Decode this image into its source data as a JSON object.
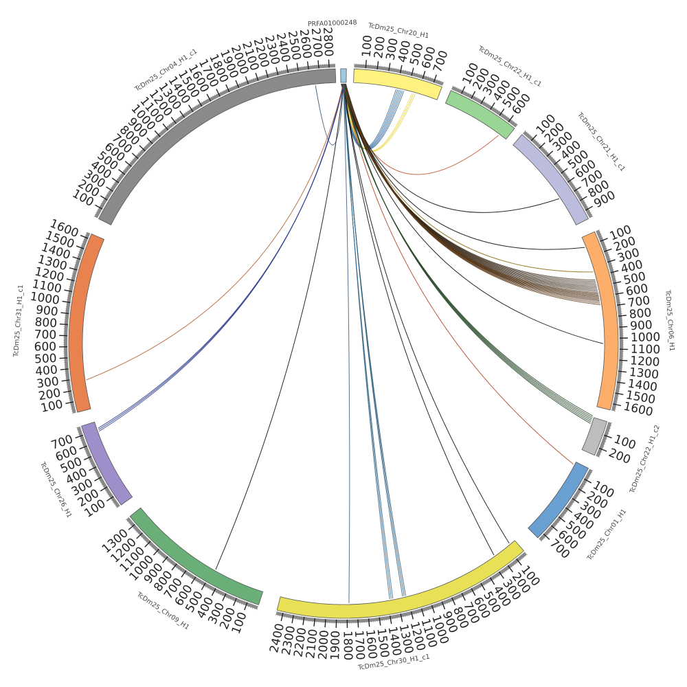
{
  "chart_data": {
    "type": "chord",
    "title": "",
    "axis_unit_note": "",
    "segments": [
      {
        "name": "PRFA01000248",
        "length": 0,
        "color": "#9ecae1",
        "ticks": [],
        "ticks_show": false
      },
      {
        "name": "TcDm25_Chr20_H1",
        "length": 780,
        "color": "#fff27f",
        "ticks": [
          100,
          200,
          300,
          400,
          500,
          600,
          700
        ],
        "ticks_show": true
      },
      {
        "name": "TcDm25_Chr22_H1_c1",
        "length": 680,
        "color": "#99d594",
        "ticks": [
          100,
          200,
          300,
          400,
          500,
          600
        ],
        "ticks_show": true
      },
      {
        "name": "TcDm25_Chr21_H1_c1",
        "length": 980,
        "color": "#bcbddc",
        "ticks": [
          100,
          200,
          300,
          400,
          500,
          600,
          700,
          800,
          900
        ],
        "ticks_show": true
      },
      {
        "name": "TcDm25_Chr06_H1",
        "length": 1660,
        "color": "#fdae6b",
        "ticks": [
          100,
          200,
          300,
          400,
          500,
          600,
          700,
          800,
          900,
          1000,
          1100,
          1200,
          1300,
          1400,
          1500,
          1600
        ],
        "ticks_show": true
      },
      {
        "name": "TcDm25_Chr22_H1_c2",
        "length": 260,
        "color": "#bdbdbd",
        "ticks": [
          100,
          200
        ],
        "ticks_show": true
      },
      {
        "name": "TcDm25_Chr01_H1",
        "length": 760,
        "color": "#6a9fd1",
        "ticks": [
          100,
          200,
          300,
          400,
          500,
          600,
          700
        ],
        "ticks_show": true
      },
      {
        "name": "TcDm25_Chr30_H1_c1",
        "length": 2460,
        "color": "#e8e055",
        "ticks": [
          100,
          200,
          300,
          400,
          500,
          600,
          700,
          800,
          900,
          1000,
          1100,
          1200,
          1300,
          1400,
          1500,
          1600,
          1700,
          1800,
          1900,
          2000,
          2100,
          2200,
          2300,
          2400
        ],
        "ticks_show": true
      },
      {
        "name": "TcDm25_Chr09_H1",
        "length": 1380,
        "color": "#6aae78",
        "ticks": [
          100,
          200,
          300,
          400,
          500,
          600,
          700,
          800,
          900,
          1000,
          1100,
          1200,
          1300
        ],
        "ticks_show": true
      },
      {
        "name": "TcDm25_Chr26_H1",
        "length": 780,
        "color": "#9e8ec9",
        "ticks": [
          100,
          200,
          300,
          400,
          500,
          600,
          700
        ],
        "ticks_show": true
      },
      {
        "name": "TcDm25_Chr31_H1_c1",
        "length": 1650,
        "color": "#e8834f",
        "ticks": [
          100,
          200,
          300,
          400,
          500,
          600,
          700,
          800,
          900,
          1000,
          1100,
          1200,
          1300,
          1400,
          1500,
          1600
        ],
        "ticks_show": true
      },
      {
        "name": "TcDm25_Chr04_H1_c1",
        "length": 2860,
        "color": "#8a8a8a",
        "ticks": [
          100,
          200,
          300,
          400,
          500,
          600,
          700,
          800,
          900,
          1000,
          1100,
          1200,
          1300,
          1400,
          1500,
          1600,
          1700,
          1800,
          1900,
          2000,
          2100,
          2200,
          2300,
          2400,
          2500,
          2600,
          2700,
          2800
        ],
        "ticks_show": true
      }
    ],
    "links": [
      {
        "from": "PRFA01000248",
        "to": "TcDm25_Chr20_H1",
        "to_pos": 430,
        "count": 6,
        "color": "#3a6fa0"
      },
      {
        "from": "PRFA01000248",
        "to": "TcDm25_Chr20_H1",
        "to_pos": 560,
        "count": 3,
        "color": "#e8d84a"
      },
      {
        "from": "PRFA01000248",
        "to": "TcDm25_Chr22_H1_c1",
        "to_pos": 600,
        "count": 1,
        "color": "#c0502a"
      },
      {
        "from": "PRFA01000248",
        "to": "TcDm25_Chr21_H1_c1",
        "to_pos": 680,
        "count": 1,
        "color": "#000000"
      },
      {
        "from": "PRFA01000248",
        "to": "TcDm25_Chr06_H1",
        "to_pos": 100,
        "count": 1,
        "color": "#000000"
      },
      {
        "from": "PRFA01000248",
        "to": "TcDm25_Chr06_H1",
        "to_pos": 350,
        "count": 1,
        "color": "#8b6d10"
      },
      {
        "from": "PRFA01000248",
        "to": "TcDm25_Chr06_H1",
        "to_pos": 530,
        "count": 14,
        "color": "#3a2a1a"
      },
      {
        "from": "PRFA01000248",
        "to": "TcDm25_Chr06_H1",
        "to_pos": 620,
        "count": 8,
        "color": "#5a3a1a"
      },
      {
        "from": "PRFA01000248",
        "to": "TcDm25_Chr06_H1",
        "to_pos": 1050,
        "count": 1,
        "color": "#000000"
      },
      {
        "from": "PRFA01000248",
        "to": "TcDm25_Chr22_H1_c2",
        "to_pos": 20,
        "count": 6,
        "color": "#2a4a2a"
      },
      {
        "from": "PRFA01000248",
        "to": "TcDm25_Chr01_H1",
        "to_pos": 30,
        "count": 1,
        "color": "#b03a1a"
      },
      {
        "from": "PRFA01000248",
        "to": "TcDm25_Chr30_H1_c1",
        "to_pos": 60,
        "count": 1,
        "color": "#000000"
      },
      {
        "from": "PRFA01000248",
        "to": "TcDm25_Chr30_H1_c1",
        "to_pos": 250,
        "count": 1,
        "color": "#000000"
      },
      {
        "from": "PRFA01000248",
        "to": "TcDm25_Chr30_H1_c1",
        "to_pos": 1230,
        "count": 3,
        "color": "#2a5a7a"
      },
      {
        "from": "PRFA01000248",
        "to": "TcDm25_Chr30_H1_c1",
        "to_pos": 1360,
        "count": 3,
        "color": "#3a6a8a"
      },
      {
        "from": "PRFA01000248",
        "to": "TcDm25_Chr30_H1_c1",
        "to_pos": 1780,
        "count": 1,
        "color": "#3a5a7a"
      },
      {
        "from": "PRFA01000248",
        "to": "TcDm25_Chr09_H1",
        "to_pos": 480,
        "count": 1,
        "color": "#000000"
      },
      {
        "from": "PRFA01000248",
        "to": "TcDm25_Chr26_H1",
        "to_pos": 700,
        "count": 3,
        "color": "#2a3a8a"
      },
      {
        "from": "PRFA01000248",
        "to": "TcDm25_Chr31_H1_c1",
        "to_pos": 280,
        "count": 1,
        "color": "#b05a2a"
      },
      {
        "from": "PRFA01000248",
        "to": "TcDm25_Chr04_H1_c1",
        "to_pos": 2650,
        "count": 1,
        "color": "#2a4a6a"
      }
    ]
  }
}
